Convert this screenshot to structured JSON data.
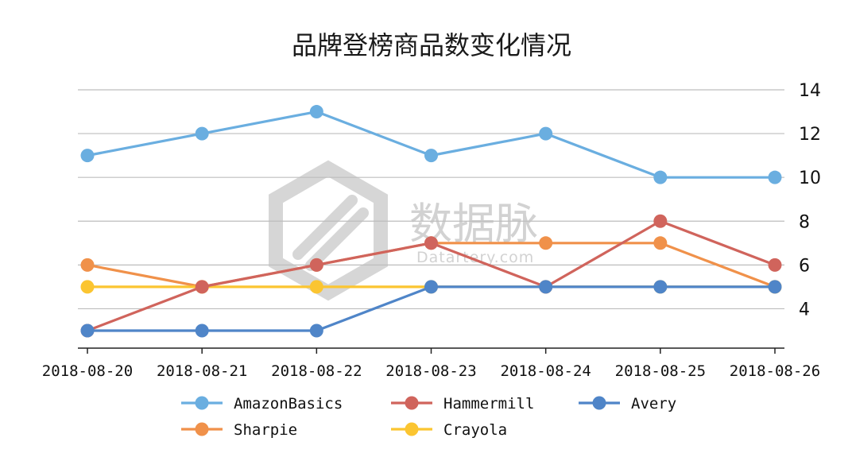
{
  "chart_data": {
    "type": "line",
    "title": "品牌登榜商品数变化情况",
    "categories": [
      "2018-08-20",
      "2018-08-21",
      "2018-08-22",
      "2018-08-23",
      "2018-08-24",
      "2018-08-25",
      "2018-08-26"
    ],
    "series": [
      {
        "name": "AmazonBasics",
        "color": "#6aaee0",
        "values": [
          11,
          12,
          13,
          11,
          12,
          10,
          10
        ]
      },
      {
        "name": "Hammermill",
        "color": "#d0645c",
        "values": [
          3,
          5,
          6,
          7,
          5,
          8,
          6
        ]
      },
      {
        "name": "Avery",
        "color": "#4f85c8",
        "values": [
          3,
          3,
          3,
          5,
          5,
          5,
          5
        ]
      },
      {
        "name": "Sharpie",
        "color": "#f0914a",
        "values": [
          6,
          5,
          6,
          7,
          7,
          7,
          5
        ]
      },
      {
        "name": "Crayola",
        "color": "#fbc531",
        "values": [
          5,
          5,
          5,
          5,
          5,
          5,
          5
        ]
      }
    ],
    "ylim": [
      2.2,
      14
    ],
    "yticks": [
      4,
      6,
      8,
      10,
      12,
      14
    ],
    "y_axis_side": "right",
    "grid": true,
    "legend": "bottom"
  },
  "watermark": {
    "name": "数据脉",
    "site": "Datartery.com"
  }
}
